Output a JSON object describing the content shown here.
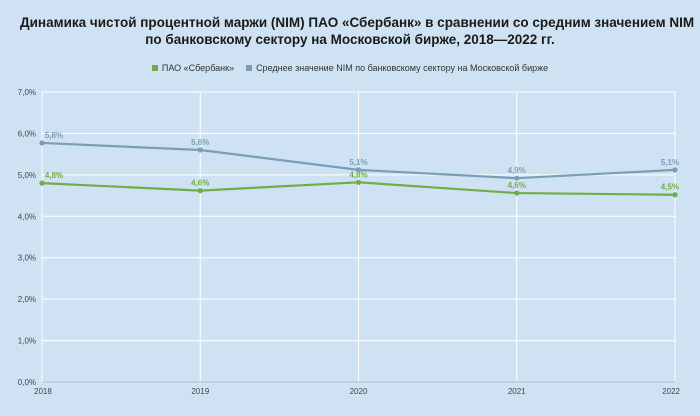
{
  "chart_data": {
    "type": "line",
    "title_lines": [
      "Динамика чистой процентной маржи (NIM) ПАО «Сбербанк» в сравнении со средним значением NIM",
      "по банковскому сектору на Московской бирже, 2018—2022 гг."
    ],
    "categories": [
      "2018",
      "2019",
      "2020",
      "2021",
      "2022"
    ],
    "ylim": [
      0,
      7
    ],
    "yticks": [
      "0,0%",
      "1,0%",
      "2,0%",
      "3,0%",
      "4,0%",
      "5,0%",
      "6,0%",
      "7,0%"
    ],
    "grid": true,
    "legend_position": "top-center",
    "series": [
      {
        "name": "ПАО «Сбербанк»",
        "color": "#70ad47",
        "values": [
          4.8,
          4.62,
          4.82,
          4.56,
          4.52
        ],
        "labels": [
          "4,8%",
          "4,6%",
          "4,8%",
          "4,6%",
          "4,5%"
        ]
      },
      {
        "name": "Среднее значение NIM по банковскому сектору на Московской бирже",
        "color": "#7a9eb4",
        "values": [
          5.77,
          5.6,
          5.12,
          4.92,
          5.12
        ],
        "labels": [
          "5,8%",
          "5,6%",
          "5,1%",
          "4,9%",
          "5,1%"
        ]
      }
    ]
  }
}
